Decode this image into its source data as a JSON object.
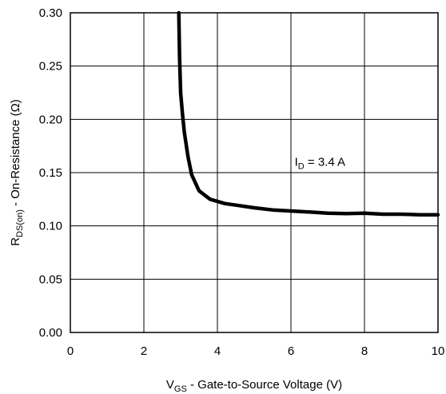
{
  "chart_data": {
    "type": "line",
    "xlabel": {
      "main": "V",
      "sub": "GS",
      "rest": " - Gate-to-Source Voltage (V)"
    },
    "ylabel": {
      "main": "R",
      "sub": "DS(on)",
      "rest": " - On-Resistance (Ω)"
    },
    "annotation": {
      "main": "I",
      "sub": "D",
      "rest": " = 3.4 A",
      "x": 6.1,
      "y": 0.16
    },
    "xlim": [
      0,
      10
    ],
    "ylim": [
      0,
      0.3
    ],
    "x_ticks": [
      "0",
      "2",
      "4",
      "6",
      "8",
      "10"
    ],
    "y_ticks": [
      "0.00",
      "0.05",
      "0.10",
      "0.15",
      "0.20",
      "0.25",
      "0.30"
    ],
    "grid": true,
    "series": [
      {
        "x": [
          2.95,
          2.97,
          3.0,
          3.05,
          3.1,
          3.2,
          3.3,
          3.5,
          3.8,
          4.2,
          4.6,
          5.0,
          5.5,
          6.0,
          6.5,
          7.0,
          7.5,
          8.0,
          8.5,
          9.0,
          9.5,
          10.0
        ],
        "y": [
          0.3,
          0.26,
          0.225,
          0.205,
          0.188,
          0.165,
          0.148,
          0.133,
          0.125,
          0.121,
          0.119,
          0.117,
          0.115,
          0.114,
          0.113,
          0.112,
          0.1115,
          0.112,
          0.111,
          0.111,
          0.1105,
          0.1105
        ]
      }
    ]
  }
}
